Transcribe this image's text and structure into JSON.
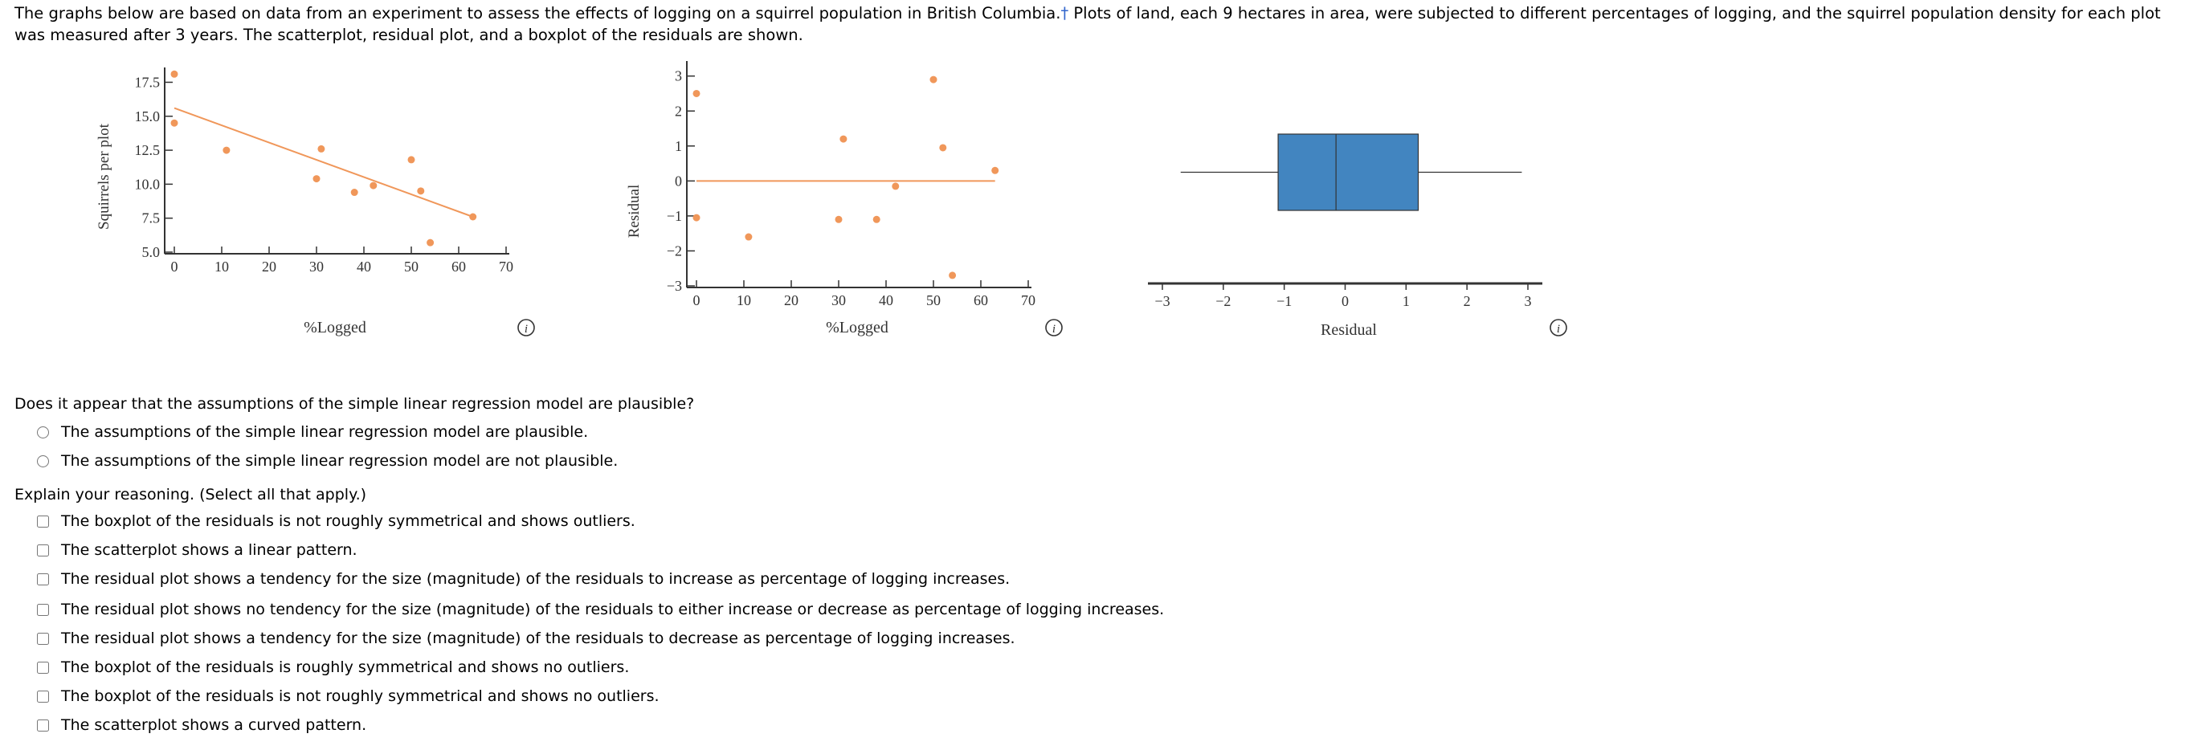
{
  "intro": {
    "text_before": "The graphs below are based on data from an experiment to assess the effects of logging on a squirrel population in British Columbia.",
    "dagger": "†",
    "text_after": " Plots of land, each 9 hectares in area, were subjected to different percentages of logging, and the squirrel population density for each plot was measured after 3 years. The scatterplot, residual plot, and a boxplot of the residuals are shown."
  },
  "colors": {
    "point": "#f0975a",
    "line": "#f0975a",
    "box_fill": "#4285c0",
    "axis": "#333333"
  },
  "chart_data": [
    {
      "type": "scatter",
      "xlabel": "%Logged",
      "ylabel": "Squirrels per plot",
      "xlim": [
        0,
        70
      ],
      "ylim": [
        5.0,
        18.0
      ],
      "x_ticks": [
        "0",
        "10",
        "20",
        "30",
        "40",
        "50",
        "60",
        "70"
      ],
      "y_ticks": [
        "5.0",
        "7.5",
        "10.0",
        "12.5",
        "15.0",
        "17.5"
      ],
      "points": [
        [
          0,
          18.1
        ],
        [
          0,
          14.5
        ],
        [
          11,
          12.5
        ],
        [
          30,
          10.4
        ],
        [
          31,
          12.6
        ],
        [
          38,
          9.4
        ],
        [
          42,
          9.9
        ],
        [
          50,
          11.8
        ],
        [
          52,
          9.5
        ],
        [
          54,
          5.7
        ],
        [
          63,
          7.6
        ]
      ],
      "fit_line": [
        [
          0,
          15.6
        ],
        [
          63,
          7.6
        ]
      ],
      "info_icon": "info-icon"
    },
    {
      "type": "scatter",
      "xlabel": "%Logged",
      "ylabel": "Residual",
      "xlim": [
        0,
        70
      ],
      "ylim": [
        -3,
        3.2
      ],
      "x_ticks": [
        "0",
        "10",
        "20",
        "30",
        "40",
        "50",
        "60",
        "70"
      ],
      "y_ticks": [
        "−3",
        "−2",
        "−1",
        "0",
        "1",
        "2",
        "3"
      ],
      "points": [
        [
          0,
          2.5
        ],
        [
          0,
          -1.05
        ],
        [
          11,
          -1.6
        ],
        [
          30,
          -1.1
        ],
        [
          31,
          1.2
        ],
        [
          38,
          -1.1
        ],
        [
          42,
          -0.15
        ],
        [
          50,
          2.9
        ],
        [
          52,
          0.95
        ],
        [
          54,
          -2.7
        ],
        [
          63,
          0.3
        ]
      ],
      "zero_line": [
        [
          0,
          0
        ],
        [
          63,
          0
        ]
      ],
      "info_icon": "info-icon"
    },
    {
      "type": "boxplot",
      "xlabel": "Residual",
      "xlim": [
        -3,
        3
      ],
      "x_ticks": [
        "−3",
        "−2",
        "−1",
        "0",
        "1",
        "2",
        "3"
      ],
      "min": -2.7,
      "q1": -1.1,
      "median": -0.15,
      "q3": 1.2,
      "max": 2.9,
      "info_icon": "info-icon"
    }
  ],
  "question1": {
    "prompt": "Does it appear that the assumptions of the simple linear regression model are plausible?",
    "options": [
      "The assumptions of the simple linear regression model are plausible.",
      "The assumptions of the simple linear regression model are not plausible."
    ]
  },
  "question2": {
    "prompt": "Explain your reasoning. (Select all that apply.)",
    "options": [
      "The boxplot of the residuals is not roughly symmetrical and shows outliers.",
      "The scatterplot shows a linear pattern.",
      "The residual plot shows a tendency for the size (magnitude) of the residuals to increase as percentage of logging increases.",
      "The residual plot shows no tendency for the size (magnitude) of the residuals to either increase or decrease as percentage of logging increases.",
      "The residual plot shows a tendency for the size (magnitude) of the residuals to decrease as percentage of logging increases.",
      "The boxplot of the residuals is roughly symmetrical and shows no outliers.",
      "The boxplot of the residuals is not roughly symmetrical and shows no outliers.",
      "The scatterplot shows a curved pattern."
    ]
  }
}
